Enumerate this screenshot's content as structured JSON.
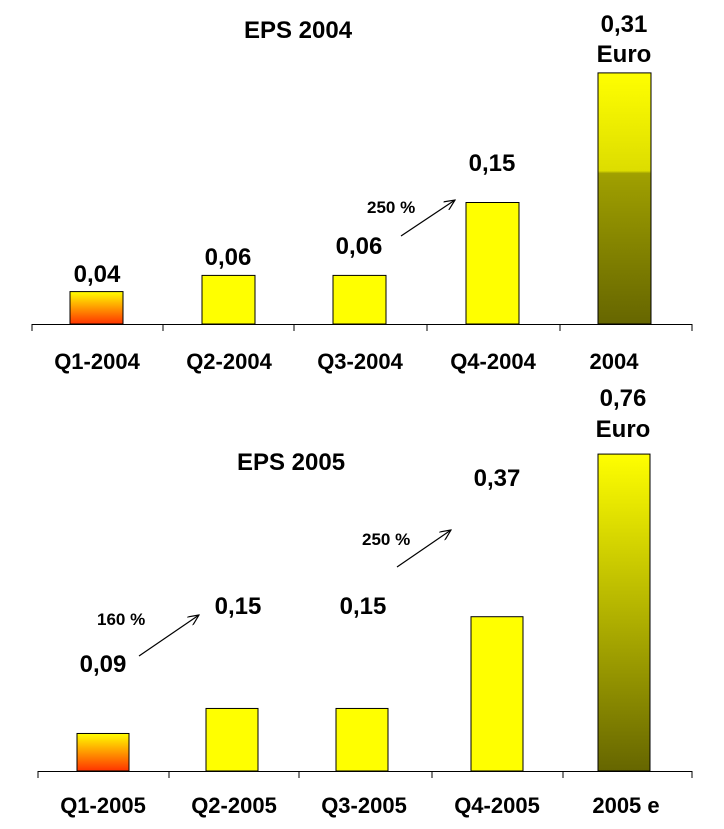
{
  "chart_data": [
    {
      "type": "bar",
      "title": "EPS 2004",
      "categories": [
        "Q1-2004",
        "Q2-2004",
        "Q3-2004",
        "Q4-2004",
        "2004"
      ],
      "values": [
        0.04,
        0.06,
        0.06,
        0.15,
        0.31
      ],
      "value_labels": [
        "0,04",
        "0,06",
        "0,06",
        "0,15",
        "0,31"
      ],
      "unit_label": "Euro",
      "annotations": [
        {
          "text": "250 %",
          "from": "Q3-2004",
          "to": "Q4-2004"
        }
      ],
      "colors": {
        "q1_top": "#ffff00",
        "q1_bottom": "#ff3300",
        "quarter": "#ffff00",
        "total_top": "#ffff00",
        "total_bottom": "#666600"
      }
    },
    {
      "type": "bar",
      "title": "EPS 2005",
      "categories": [
        "Q1-2005",
        "Q2-2005",
        "Q3-2005",
        "Q4-2005",
        "2005 e"
      ],
      "values": [
        0.09,
        0.15,
        0.15,
        0.37,
        0.76
      ],
      "value_labels": [
        "0,09",
        "0,15",
        "0,15",
        "0,37",
        "0,76"
      ],
      "unit_label": "Euro",
      "annotations": [
        {
          "text": "160 %",
          "from": "Q1-2005",
          "to": "Q2-2005"
        },
        {
          "text": "250 %",
          "from": "Q3-2005",
          "to": "Q4-2005"
        }
      ],
      "colors": {
        "q1_top": "#ffff00",
        "q1_bottom": "#ff3300",
        "quarter": "#ffff00",
        "total_top": "#ffff00",
        "total_bottom": "#666600"
      }
    }
  ]
}
